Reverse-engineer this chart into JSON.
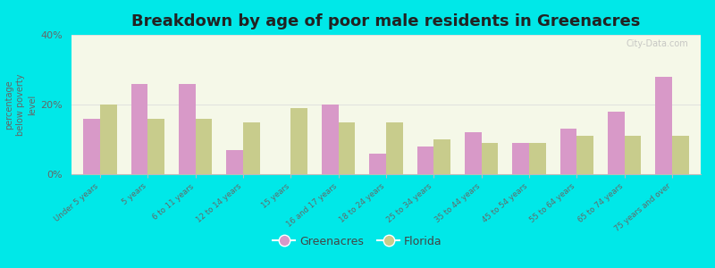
{
  "title": "Breakdown by age of poor male residents in Greenacres",
  "ylabel": "percentage\nbelow poverty\nlevel",
  "categories": [
    "Under 5 years",
    "5 years",
    "6 to 11 years",
    "12 to 14 years",
    "15 years",
    "16 and 17 years",
    "18 to 24 years",
    "25 to 34 years",
    "35 to 44 years",
    "45 to 54 years",
    "55 to 64 years",
    "65 to 74 years",
    "75 years and over"
  ],
  "greenacres_values": [
    16,
    26,
    26,
    7,
    0,
    20,
    6,
    8,
    12,
    9,
    13,
    18,
    28
  ],
  "florida_values": [
    20,
    16,
    16,
    15,
    19,
    15,
    15,
    10,
    9,
    9,
    11,
    11,
    11
  ],
  "greenacres_color": "#d899c8",
  "florida_color": "#c8cc8c",
  "plot_bg": "#f5f8e8",
  "outer_bg": "#00e8e8",
  "ylim": [
    0,
    40
  ],
  "yticks": [
    0,
    20,
    40
  ],
  "ytick_labels": [
    "0%",
    "20%",
    "40%"
  ],
  "title_fontsize": 13,
  "bar_width": 0.35,
  "legend_labels": [
    "Greenacres",
    "Florida"
  ],
  "watermark": "City-Data.com"
}
